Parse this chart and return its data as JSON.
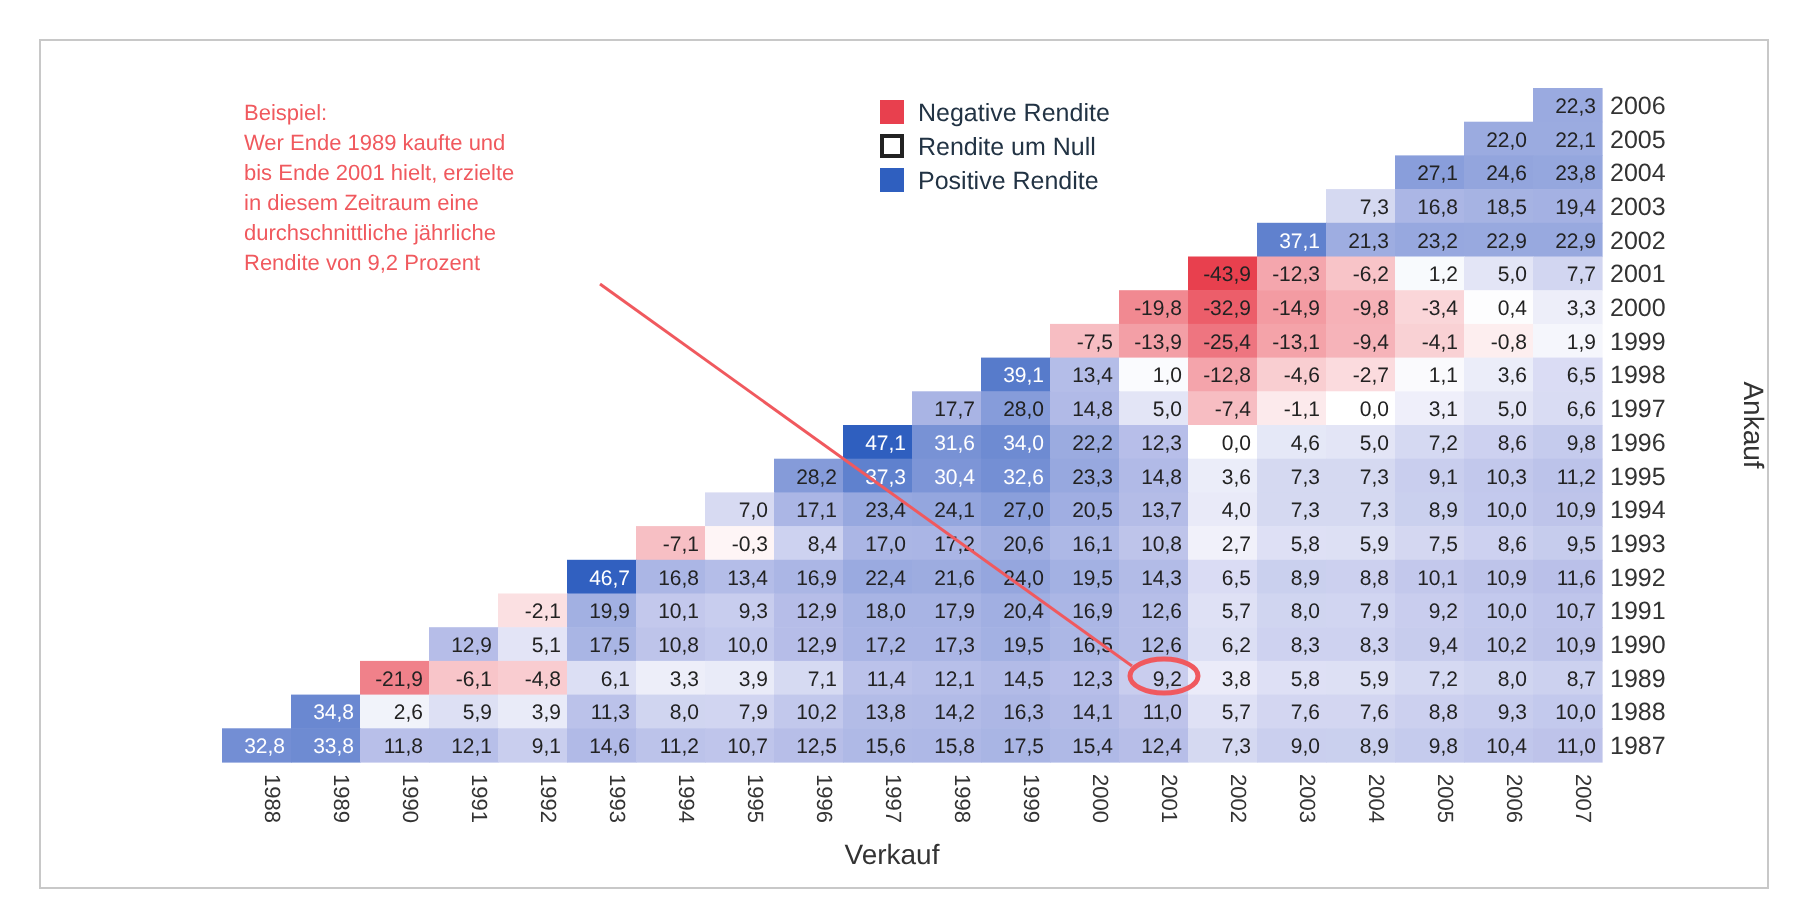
{
  "chart_data": {
    "type": "heatmap",
    "xlabel": "Verkauf",
    "ylabel": "Ankauf",
    "categories": [
      "1988",
      "1989",
      "1990",
      "1991",
      "1992",
      "1993",
      "1994",
      "1995",
      "1996",
      "1997",
      "1998",
      "1999",
      "2000",
      "2001",
      "2002",
      "2003",
      "2004",
      "2005",
      "2006",
      "2007"
    ],
    "y_categories": [
      "2006",
      "2005",
      "2004",
      "2003",
      "2002",
      "2001",
      "2000",
      "1999",
      "1998",
      "1997",
      "1996",
      "1995",
      "1994",
      "1993",
      "1992",
      "1991",
      "1990",
      "1989",
      "1988",
      "1987"
    ],
    "cells": [
      [
        null,
        null,
        null,
        null,
        null,
        null,
        null,
        null,
        null,
        null,
        null,
        null,
        null,
        null,
        null,
        null,
        null,
        null,
        null,
        22.3
      ],
      [
        null,
        null,
        null,
        null,
        null,
        null,
        null,
        null,
        null,
        null,
        null,
        null,
        null,
        null,
        null,
        null,
        null,
        null,
        22.0,
        22.1
      ],
      [
        null,
        null,
        null,
        null,
        null,
        null,
        null,
        null,
        null,
        null,
        null,
        null,
        null,
        null,
        null,
        null,
        null,
        27.1,
        24.6,
        23.8
      ],
      [
        null,
        null,
        null,
        null,
        null,
        null,
        null,
        null,
        null,
        null,
        null,
        null,
        null,
        null,
        null,
        null,
        7.3,
        16.8,
        18.5,
        19.4
      ],
      [
        null,
        null,
        null,
        null,
        null,
        null,
        null,
        null,
        null,
        null,
        null,
        null,
        null,
        null,
        null,
        37.1,
        21.3,
        23.2,
        22.9,
        22.9
      ],
      [
        null,
        null,
        null,
        null,
        null,
        null,
        null,
        null,
        null,
        null,
        null,
        null,
        null,
        null,
        -43.9,
        -12.3,
        -6.2,
        1.2,
        5.0,
        7.7
      ],
      [
        null,
        null,
        null,
        null,
        null,
        null,
        null,
        null,
        null,
        null,
        null,
        null,
        null,
        -19.8,
        -32.9,
        -14.9,
        -9.8,
        -3.4,
        0.4,
        3.3
      ],
      [
        null,
        null,
        null,
        null,
        null,
        null,
        null,
        null,
        null,
        null,
        null,
        null,
        -7.5,
        -13.9,
        -25.4,
        -13.1,
        -9.4,
        -4.1,
        -0.8,
        1.9
      ],
      [
        null,
        null,
        null,
        null,
        null,
        null,
        null,
        null,
        null,
        null,
        null,
        39.1,
        13.4,
        1.0,
        -12.8,
        -4.6,
        -2.7,
        1.1,
        3.6,
        6.5
      ],
      [
        null,
        null,
        null,
        null,
        null,
        null,
        null,
        null,
        null,
        null,
        17.7,
        28.0,
        14.8,
        5.0,
        -7.4,
        -1.1,
        0.0,
        3.1,
        5.0,
        6.6
      ],
      [
        null,
        null,
        null,
        null,
        null,
        null,
        null,
        null,
        null,
        47.1,
        31.6,
        34.0,
        22.2,
        12.3,
        0.0,
        4.6,
        5.0,
        7.2,
        8.6,
        9.8
      ],
      [
        null,
        null,
        null,
        null,
        null,
        null,
        null,
        null,
        28.2,
        37.3,
        30.4,
        32.6,
        23.3,
        14.8,
        3.6,
        7.3,
        7.3,
        9.1,
        10.3,
        11.2
      ],
      [
        null,
        null,
        null,
        null,
        null,
        null,
        null,
        7.0,
        17.1,
        23.4,
        24.1,
        27.0,
        20.5,
        13.7,
        4.0,
        7.3,
        7.3,
        8.9,
        10.0,
        10.9
      ],
      [
        null,
        null,
        null,
        null,
        null,
        null,
        -7.1,
        -0.3,
        8.4,
        17.0,
        17.2,
        20.6,
        16.1,
        10.8,
        2.7,
        5.8,
        5.9,
        7.5,
        8.6,
        9.5
      ],
      [
        null,
        null,
        null,
        null,
        null,
        46.7,
        16.8,
        13.4,
        16.9,
        22.4,
        21.6,
        24.0,
        19.5,
        14.3,
        6.5,
        8.9,
        8.8,
        10.1,
        10.9,
        11.6
      ],
      [
        null,
        null,
        null,
        null,
        -2.1,
        19.9,
        10.1,
        9.3,
        12.9,
        18.0,
        17.9,
        20.4,
        16.9,
        12.6,
        5.7,
        8.0,
        7.9,
        9.2,
        10.0,
        10.7
      ],
      [
        null,
        null,
        null,
        12.9,
        5.1,
        17.5,
        10.8,
        10.0,
        12.9,
        17.2,
        17.3,
        19.5,
        16.5,
        12.6,
        6.2,
        8.3,
        8.3,
        9.4,
        10.2,
        10.9
      ],
      [
        null,
        null,
        -21.9,
        -6.1,
        -4.8,
        6.1,
        3.3,
        3.9,
        7.1,
        11.4,
        12.1,
        14.5,
        12.3,
        9.2,
        3.8,
        5.8,
        5.9,
        7.2,
        8.0,
        8.7
      ],
      [
        null,
        34.8,
        2.6,
        5.9,
        3.9,
        11.3,
        8.0,
        7.9,
        10.2,
        13.8,
        14.2,
        16.3,
        14.1,
        11.0,
        5.7,
        7.6,
        7.6,
        8.8,
        9.3,
        10.0
      ],
      [
        32.8,
        33.8,
        11.8,
        12.1,
        9.1,
        14.6,
        11.2,
        10.7,
        12.5,
        15.6,
        15.8,
        17.5,
        15.4,
        12.4,
        7.3,
        9.0,
        8.9,
        9.8,
        10.4,
        11.0
      ]
    ],
    "cell_labels": [
      [
        null,
        null,
        null,
        null,
        null,
        null,
        null,
        null,
        null,
        null,
        null,
        null,
        null,
        null,
        null,
        null,
        null,
        null,
        null,
        "22,3"
      ],
      [
        null,
        null,
        null,
        null,
        null,
        null,
        null,
        null,
        null,
        null,
        null,
        null,
        null,
        null,
        null,
        null,
        null,
        null,
        "22,0",
        "22,1"
      ],
      [
        null,
        null,
        null,
        null,
        null,
        null,
        null,
        null,
        null,
        null,
        null,
        null,
        null,
        null,
        null,
        null,
        null,
        "27,1",
        "24,6",
        "23,8"
      ],
      [
        null,
        null,
        null,
        null,
        null,
        null,
        null,
        null,
        null,
        null,
        null,
        null,
        null,
        null,
        null,
        null,
        "7,3",
        "16,8",
        "18,5",
        "19,4"
      ],
      [
        null,
        null,
        null,
        null,
        null,
        null,
        null,
        null,
        null,
        null,
        null,
        null,
        null,
        null,
        null,
        "37,1",
        "21,3",
        "23,2",
        "22,9",
        "22,9"
      ],
      [
        null,
        null,
        null,
        null,
        null,
        null,
        null,
        null,
        null,
        null,
        null,
        null,
        null,
        null,
        "-43,9",
        "-12,3",
        "-6,2",
        "1,2",
        "5,0",
        "7,7"
      ],
      [
        null,
        null,
        null,
        null,
        null,
        null,
        null,
        null,
        null,
        null,
        null,
        null,
        null,
        "-19,8",
        "-32,9",
        "-14,9",
        "-9,8",
        "-3,4",
        "0,4",
        "3,3"
      ],
      [
        null,
        null,
        null,
        null,
        null,
        null,
        null,
        null,
        null,
        null,
        null,
        null,
        "-7,5",
        "-13,9",
        "-25,4",
        "-13,1",
        "-9,4",
        "-4,1",
        "-0,8",
        "1,9"
      ],
      [
        null,
        null,
        null,
        null,
        null,
        null,
        null,
        null,
        null,
        null,
        null,
        "39,1",
        "13,4",
        "1,0",
        "-12,8",
        "-4,6",
        "-2,7",
        "1,1",
        "3,6",
        "6,5"
      ],
      [
        null,
        null,
        null,
        null,
        null,
        null,
        null,
        null,
        null,
        null,
        "17,7",
        "28,0",
        "14,8",
        "5,0",
        "-7,4",
        "-1,1",
        "0,0",
        "3,1",
        "5,0",
        "6,6"
      ],
      [
        null,
        null,
        null,
        null,
        null,
        null,
        null,
        null,
        null,
        "47,1",
        "31,6",
        "34,0",
        "22,2",
        "12,3",
        "0,0",
        "4,6",
        "5,0",
        "7,2",
        "8,6",
        "9,8"
      ],
      [
        null,
        null,
        null,
        null,
        null,
        null,
        null,
        null,
        "28,2",
        "37,3",
        "30,4",
        "32,6",
        "23,3",
        "14,8",
        "3,6",
        "7,3",
        "7,3",
        "9,1",
        "10,3",
        "11,2"
      ],
      [
        null,
        null,
        null,
        null,
        null,
        null,
        null,
        "7,0",
        "17,1",
        "23,4",
        "24,1",
        "27,0",
        "20,5",
        "13,7",
        "4,0",
        "7,3",
        "7,3",
        "8,9",
        "10,0",
        "10,9"
      ],
      [
        null,
        null,
        null,
        null,
        null,
        null,
        "-7,1",
        "-0,3",
        "8,4",
        "17,0",
        "17,2",
        "20,6",
        "16,1",
        "10,8",
        "2,7",
        "5,8",
        "5,9",
        "7,5",
        "8,6",
        "9,5"
      ],
      [
        null,
        null,
        null,
        null,
        null,
        "46,7",
        "16,8",
        "13,4",
        "16,9",
        "22,4",
        "21,6",
        "24,0",
        "19,5",
        "14,3",
        "6,5",
        "8,9",
        "8,8",
        "10,1",
        "10,9",
        "11,6"
      ],
      [
        null,
        null,
        null,
        null,
        "-2,1",
        "19,9",
        "10,1",
        "9,3",
        "12,9",
        "18,0",
        "17,9",
        "20,4",
        "16,9",
        "12,6",
        "5,7",
        "8,0",
        "7,9",
        "9,2",
        "10,0",
        "10,7"
      ],
      [
        null,
        null,
        null,
        "12,9",
        "5,1",
        "17,5",
        "10,8",
        "10,0",
        "12,9",
        "17,2",
        "17,3",
        "19,5",
        "16,5",
        "12,6",
        "6,2",
        "8,3",
        "8,3",
        "9,4",
        "10,2",
        "10,9"
      ],
      [
        null,
        null,
        "-21,9",
        "-6,1",
        "-4,8",
        "6,1",
        "3,3",
        "3,9",
        "7,1",
        "11,4",
        "12,1",
        "14,5",
        "12,3",
        "9,2",
        "3,8",
        "5,8",
        "5,9",
        "7,2",
        "8,0",
        "8,7"
      ],
      [
        null,
        "34,8",
        "2,6",
        "5,9",
        "3,9",
        "11,3",
        "8,0",
        "7,9",
        "10,2",
        "13,8",
        "14,2",
        "16,3",
        "14,1",
        "11,0",
        "5,7",
        "7,6",
        "7,6",
        "8,8",
        "9,3",
        "10,0"
      ],
      [
        "32,8",
        "33,8",
        "11,8",
        "12,1",
        "9,1",
        "14,6",
        "11,2",
        "10,7",
        "12,5",
        "15,6",
        "15,8",
        "17,5",
        "15,4",
        "12,4",
        "7,3",
        "9,0",
        "8,9",
        "9,8",
        "10,4",
        "11,0"
      ]
    ],
    "annotations": [
      "Beispiel:\nWer Ende 1989 kaufte und\nbis Ende 2001 hielt, erzielte\nin diesem Zeitraum eine\ndurchschnittliche jährliche\nRendite von 9,2 Prozent",
      "Negative Rendite",
      "Rendite um Null",
      "Positive Rendite"
    ]
  }
}
